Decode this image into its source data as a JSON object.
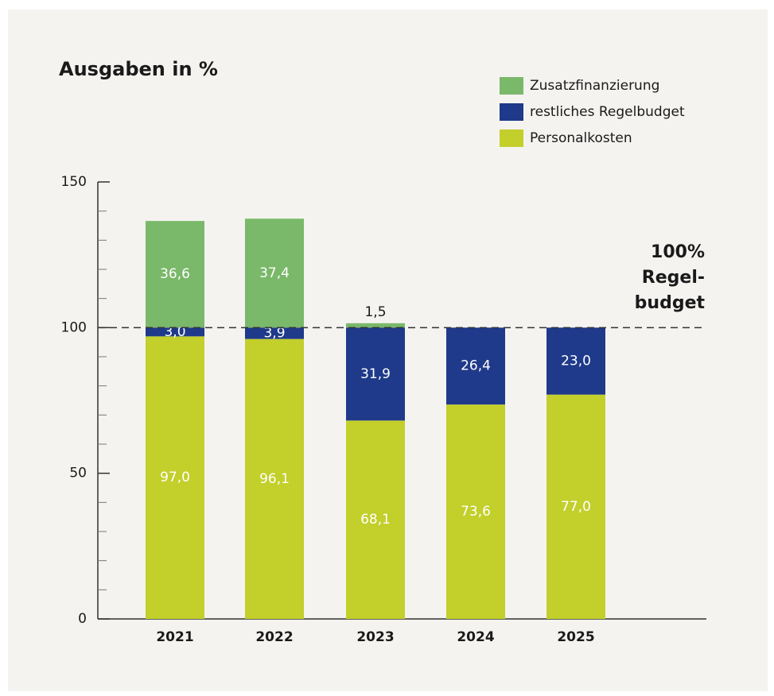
{
  "chart_data": {
    "type": "stacked_bar",
    "title": "Ausgaben in %",
    "categories": [
      "2021",
      "2022",
      "2023",
      "2024",
      "2025"
    ],
    "series": [
      {
        "name": "Personalkosten",
        "color": "#c3cf2b",
        "values": [
          97.0,
          96.1,
          68.1,
          73.6,
          77.0
        ],
        "value_labels": [
          "97,0",
          "96,1",
          "68,1",
          "73,6",
          "77,0"
        ]
      },
      {
        "name": "restliches Regelbudget",
        "color": "#1f3a8a",
        "values": [
          3.0,
          3.9,
          31.9,
          26.4,
          23.0
        ],
        "value_labels": [
          "3,0",
          "3,9",
          "31,9",
          "26,4",
          "23,0"
        ]
      },
      {
        "name": "Zusatzfinanzierung",
        "color": "#7ab86a",
        "values": [
          36.6,
          37.4,
          1.5,
          null,
          null
        ],
        "value_labels": [
          "36,6",
          "37,4",
          "1,5",
          null,
          null
        ]
      }
    ],
    "ylim": [
      0,
      150
    ],
    "yticks": [
      0,
      50,
      100,
      150
    ],
    "minor_yticks": [
      10,
      20,
      30,
      40,
      60,
      70,
      80,
      90,
      110,
      120,
      130,
      140
    ],
    "reference_line": 100,
    "annotation": [
      "100%",
      "Regel-",
      "budget"
    ],
    "legend": "top-right"
  }
}
